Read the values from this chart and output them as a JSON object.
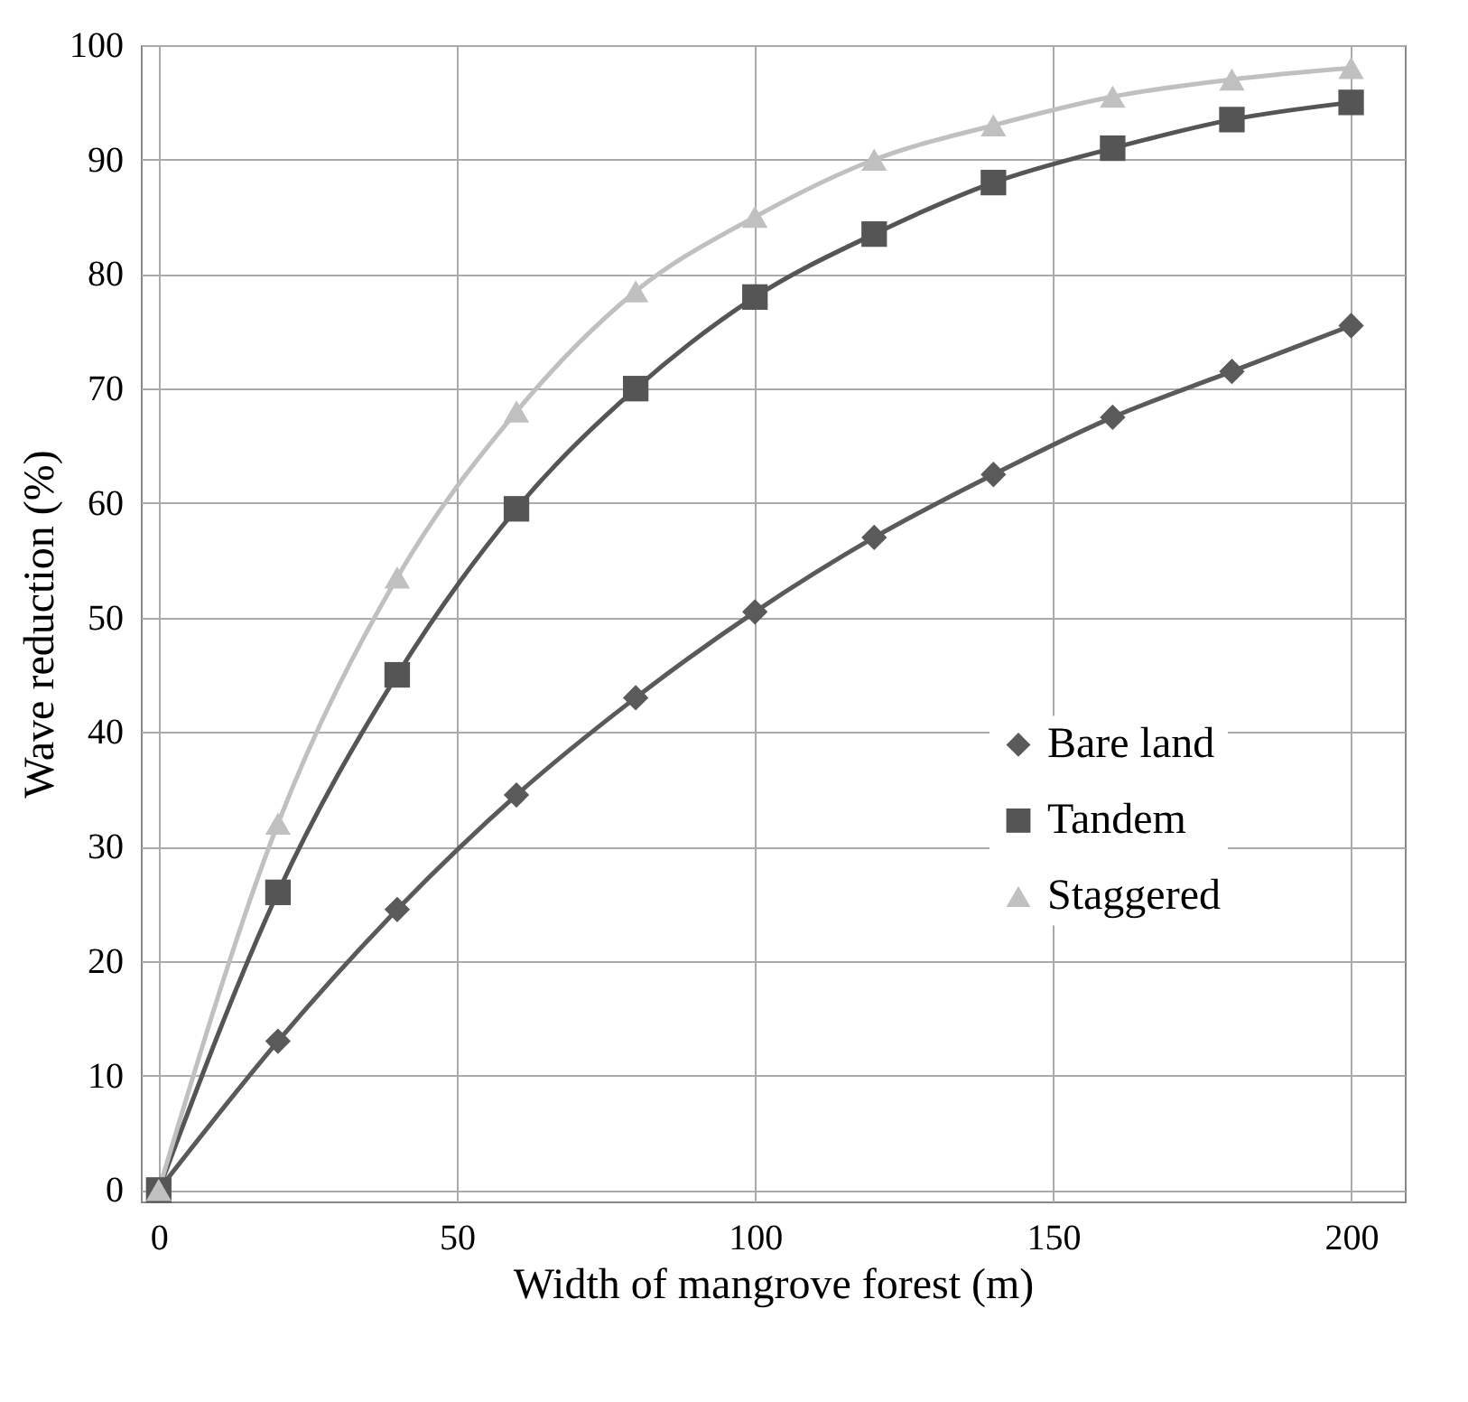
{
  "chart_data": {
    "type": "line",
    "xlabel": "Width of mangrove forest (m)",
    "ylabel": "Wave reduction (%)",
    "x": [
      0,
      20,
      40,
      60,
      80,
      100,
      120,
      140,
      160,
      180,
      200
    ],
    "series": [
      {
        "name": "Bare land",
        "color": "#5a5a5a",
        "marker": "diamond",
        "values": [
          0,
          13,
          24.5,
          34.5,
          43,
          50.5,
          57,
          62.5,
          67.5,
          71.5,
          75.5
        ]
      },
      {
        "name": "Tandem",
        "color": "#555555",
        "marker": "square",
        "values": [
          0,
          26,
          45,
          59.5,
          70,
          78,
          83.5,
          88,
          91,
          93.5,
          95
        ]
      },
      {
        "name": "Staggered",
        "color": "#c0c0c0",
        "marker": "triangle",
        "values": [
          0,
          32,
          53.5,
          68,
          78.5,
          85,
          90,
          93,
          95.5,
          97,
          98
        ]
      }
    ],
    "xlim": [
      -3,
      209
    ],
    "xticks": [
      0,
      50,
      100,
      150,
      200
    ],
    "ylim": [
      -1,
      100
    ],
    "yticks": [
      0,
      10,
      20,
      30,
      40,
      50,
      60,
      70,
      80,
      90,
      100
    ],
    "grid": true,
    "legend": "right"
  }
}
